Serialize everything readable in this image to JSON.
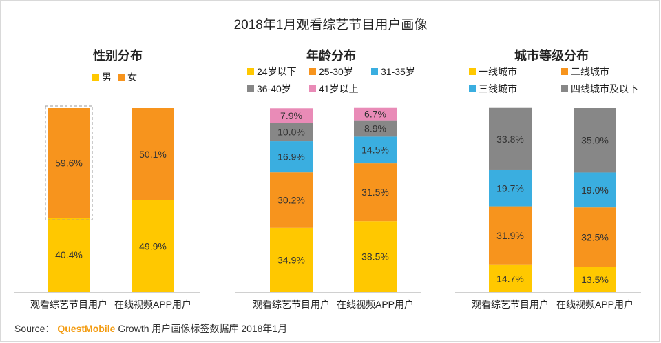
{
  "title": "2018年1月观看综艺节目用户画像",
  "source": {
    "prefix": "Source：",
    "brand": "QuestMobile",
    "suffix": "Growth 用户画像标签数据库 2018年1月"
  },
  "chart_data": [
    {
      "type": "bar",
      "stacked": true,
      "title": "性别分布",
      "categories": [
        "观看综艺节目用户",
        "在线视频APP用户"
      ],
      "series": [
        {
          "name": "男",
          "color": "#FFC800",
          "values": [
            40.4,
            49.9
          ]
        },
        {
          "name": "女",
          "color": "#F7941D",
          "values": [
            59.6,
            50.1
          ]
        }
      ],
      "ylim": [
        0,
        100
      ],
      "legend": "top",
      "highlight": {
        "category_index": 0,
        "series_index": 1
      }
    },
    {
      "type": "bar",
      "stacked": true,
      "title": "年龄分布",
      "categories": [
        "观看综艺节目用户",
        "在线视频APP用户"
      ],
      "series": [
        {
          "name": "24岁以下",
          "color": "#FFC800",
          "values": [
            34.9,
            38.5
          ]
        },
        {
          "name": "25-30岁",
          "color": "#F7941D",
          "values": [
            30.2,
            31.5
          ]
        },
        {
          "name": "31-35岁",
          "color": "#3AAEE0",
          "values": [
            16.9,
            14.5
          ]
        },
        {
          "name": "36-40岁",
          "color": "#878787",
          "values": [
            10.0,
            8.9
          ]
        },
        {
          "name": "41岁以上",
          "color": "#E98BB7",
          "values": [
            7.9,
            6.7
          ]
        }
      ],
      "ylim": [
        0,
        100
      ],
      "legend": "top"
    },
    {
      "type": "bar",
      "stacked": true,
      "title": "城市等级分布",
      "categories": [
        "观看综艺节目用户",
        "在线视频APP用户"
      ],
      "series": [
        {
          "name": "一线城市",
          "color": "#FFC800",
          "values": [
            14.7,
            13.5
          ]
        },
        {
          "name": "二线城市",
          "color": "#F7941D",
          "values": [
            31.9,
            32.5
          ]
        },
        {
          "name": "三线城市",
          "color": "#3AAEE0",
          "values": [
            19.7,
            19.0
          ]
        },
        {
          "name": "四线城市及以下",
          "color": "#878787",
          "values": [
            33.8,
            35.0
          ]
        }
      ],
      "ylim": [
        0,
        100
      ],
      "legend": "top"
    }
  ]
}
